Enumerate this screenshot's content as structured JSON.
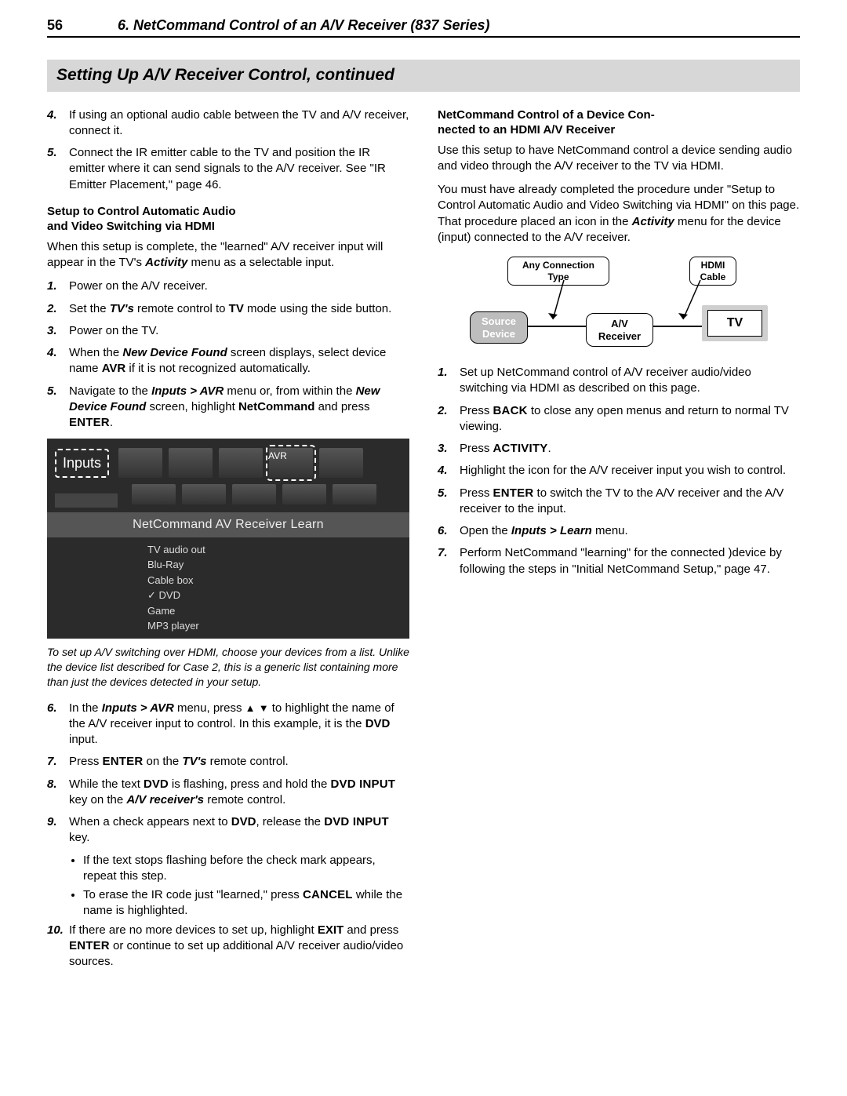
{
  "header": {
    "page_number": "56",
    "chapter": "6.  NetCommand Control of an A/V Receiver (837 Series)"
  },
  "section_title": "Setting Up A/V Receiver Control, continued",
  "left": {
    "list1": [
      {
        "n": "4.",
        "html": "If using an optional audio cable between the TV and A/V receiver, connect it."
      },
      {
        "n": "5.",
        "html": "Connect the IR emitter cable to the TV and position the IR emitter where it can send signals to the A/V receiver.  See \"IR Emitter Placement,\" page 46."
      }
    ],
    "sub1_t1": "Setup to Control Automatic Audio",
    "sub1_t2": "and Video Switching via HDMI",
    "para1a": "When this setup is complete, the \"learned\" A/V receiver input will appear in the TV's ",
    "para1b": "Activity",
    "para1c": " menu as a selectable input.",
    "list2": [
      {
        "n": "1.",
        "html": "Power on the A/V receiver."
      },
      {
        "n": "2.",
        "html": "Set the <span class='bi'>TV's</span> remote control to <span class='b'>TV</span> mode using the side button."
      },
      {
        "n": "3.",
        "html": "Power on the TV."
      },
      {
        "n": "4.",
        "html": "When the <span class='bi'>New Device Found</span> screen displays, select device name <span class='b'>AVR</span> if it is not recognized automatically."
      },
      {
        "n": "5.",
        "html": "Navigate to the <span class='bi'>Inputs &gt; AVR</span> menu or, from within the <span class='bi'>New Device Found</span> screen, highlight <span class='b'>NetCommand</span> and press <span class='sc'>ENTER</span>."
      }
    ],
    "tv": {
      "inputs": "Inputs",
      "avr": "AVR",
      "band": "NetCommand AV Receiver Learn",
      "items": [
        "TV audio out",
        "Blu-Ray",
        "Cable box",
        "DVD",
        "Game",
        "MP3 player"
      ],
      "checked_index": 3
    },
    "caption": "To set up A/V switching over HDMI, choose your devices from a list.  Unlike the device list described for Case 2, this is a generic list containing more than just the devices detected in your setup.",
    "list3": [
      {
        "n": "6.",
        "html": "In the <span class='bi'>Inputs &gt; AVR</span> menu, press <span class='tri'>▲</span> <span class='tri'>▼</span> to highlight the name of the A/V receiver input to control.  In this example, it is the <span class='b'>DVD</span> input."
      },
      {
        "n": "7.",
        "html": "Press <span class='sc'>ENTER</span> on the <span class='bi'>TV's</span> remote control."
      },
      {
        "n": "8.",
        "html": "While the text <span class='b'>DVD</span> is flashing, press and hold the <span class='sc'>DVD INPUT</span> key on the <span class='bi'>A/V receiver's</span> remote control."
      },
      {
        "n": "9.",
        "html": "When a check appears next to <span class='b'>DVD</span>, release the <span class='sc'>DVD INPUT</span> key."
      }
    ],
    "bullets": [
      "If the text stops flashing before the check mark appears, repeat this step.",
      "To erase the IR code just \"learned,\" press <span class='sc'>CANCEL</span> while the name is highlighted."
    ],
    "list4": [
      {
        "n": "10.",
        "html": "If there are no more devices to set up, highlight <span class='b'>EXIT</span> and press <span class='sc'>ENTER</span> or continue to set up additional A/V receiver audio/video sources."
      }
    ]
  },
  "right": {
    "sub_t1": "NetCommand Control of a Device Con-",
    "sub_t2": "nected to an HDMI A/V Receiver",
    "para1": "Use this setup to have NetCommand control a device sending audio and video through the A/V receiver to the TV via HDMI.",
    "para2": "You must have already completed the procedure under \"Setup to Control Automatic Audio and Video Switching via HDMI\" on this page.  That procedure placed an icon in the <span class='bi'>Activity</span> menu for the device (input) connected to the A/V receiver.",
    "diagram": {
      "any_connection_l1": "Any Connection",
      "any_connection_l2": "Type",
      "hdmi_l1": "HDMI",
      "hdmi_l2": "Cable",
      "source_l1": "Source",
      "source_l2": "Device",
      "avr_l1": "A/V",
      "avr_l2": "Receiver",
      "tv": "TV"
    },
    "list": [
      {
        "n": "1.",
        "html": "Set up NetCommand control of A/V receiver audio/video switching via HDMI as described on this page."
      },
      {
        "n": "2.",
        "html": "Press <span class='sc'>BACK</span> to close any open menus and return to normal TV viewing."
      },
      {
        "n": "3.",
        "html": "Press <span class='sc'>ACTIVITY</span>."
      },
      {
        "n": "4.",
        "html": "Highlight the icon for the A/V receiver input you wish to control."
      },
      {
        "n": "5.",
        "html": "Press <span class='sc'>ENTER</span> to switch the TV to the A/V receiver and the A/V receiver to the input."
      },
      {
        "n": "6.",
        "html": "Open the <span class='bi'>Inputs &gt; Learn</span> menu."
      },
      {
        "n": "7.",
        "html": "Perform NetCommand \"learning\" for the connected )device by following the steps in \"Initial NetCommand Setup,\" page 47."
      }
    ]
  }
}
